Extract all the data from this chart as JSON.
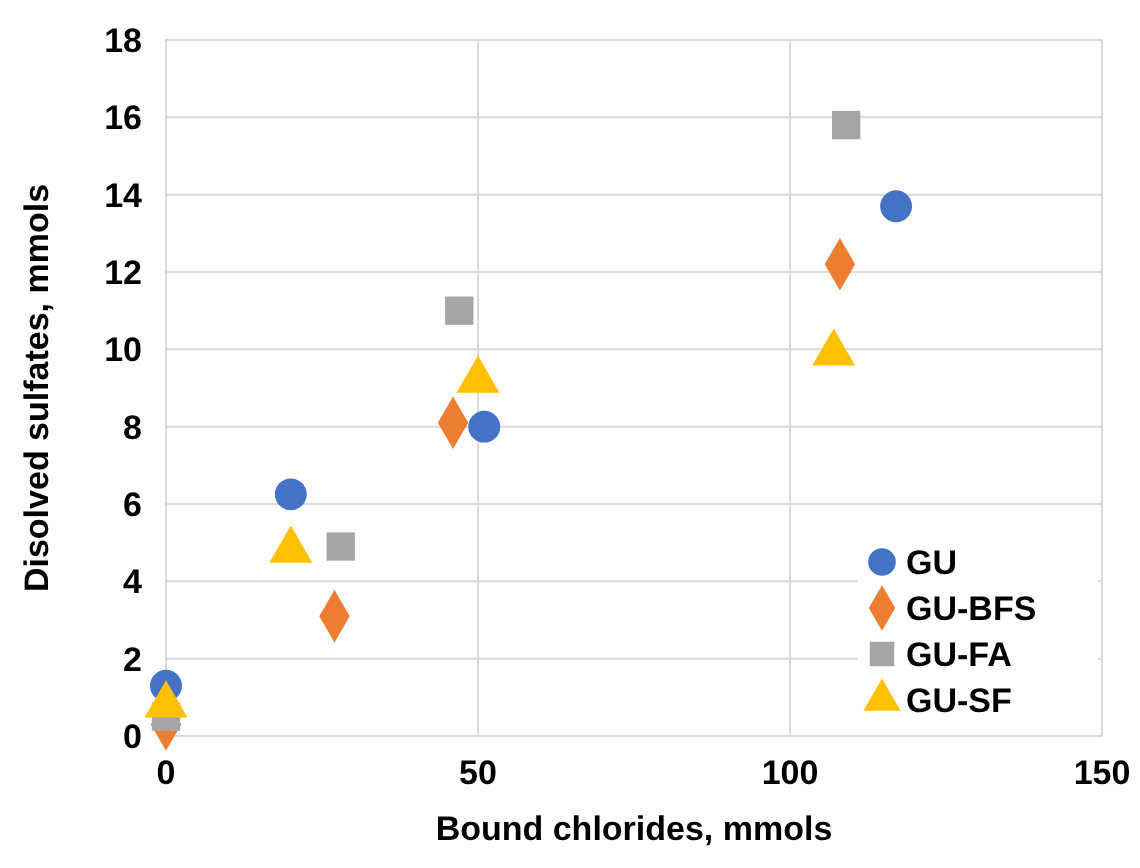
{
  "chart_data": {
    "type": "scatter",
    "xlabel": "Bound chlorides, mmols",
    "ylabel": "Disolved sulfates, mmols",
    "xlim": [
      0,
      150
    ],
    "xticks": [
      0,
      50,
      100,
      150
    ],
    "ylim": [
      0,
      18
    ],
    "yticks": [
      0,
      2,
      4,
      6,
      8,
      10,
      12,
      14,
      16,
      18
    ],
    "grid": true,
    "legend": "bottom right",
    "series": [
      {
        "name": "GU",
        "color": "#4472c4",
        "marker": "circle",
        "x": [
          0,
          20,
          51,
          117
        ],
        "values": [
          1.3,
          6.25,
          8,
          13.7
        ]
      },
      {
        "name": "GU-BFS",
        "color": "#ed7d31",
        "marker": "diamond",
        "x": [
          0,
          27,
          46,
          108
        ],
        "values": [
          0.3,
          3.1,
          8.1,
          12.2
        ]
      },
      {
        "name": "GU-FA",
        "color": "#a5a5a5",
        "marker": "square",
        "x": [
          0,
          28,
          47,
          109
        ],
        "values": [
          0.5,
          4.9,
          11,
          15.8
        ]
      },
      {
        "name": "GU-SF",
        "color": "#ffc000",
        "marker": "triangle",
        "x": [
          0,
          20,
          50,
          107
        ],
        "values": [
          0.8,
          4.8,
          9.2,
          9.9
        ]
      }
    ]
  }
}
